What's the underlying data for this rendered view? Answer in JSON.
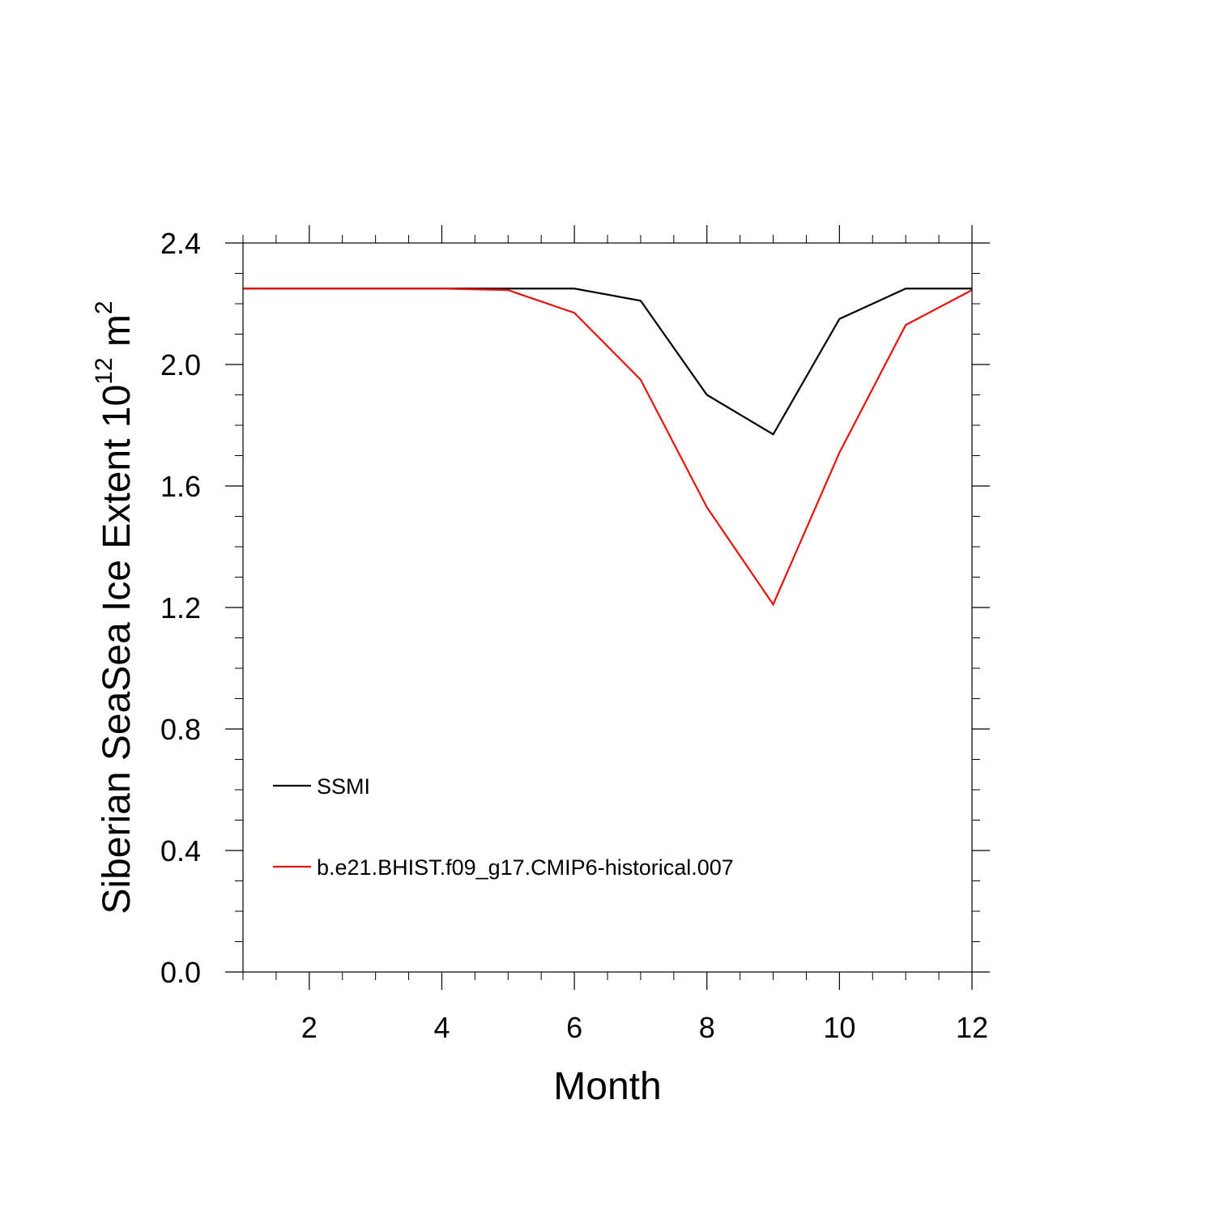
{
  "chart_data": {
    "type": "line",
    "xlabel": "Month",
    "ylabel": {
      "prefix": "Siberian SeaSea Ice Extent 10",
      "exponent": "12",
      "unit": " m",
      "unit_exponent": "2"
    },
    "xlim": [
      1,
      12
    ],
    "ylim": [
      0.0,
      2.4
    ],
    "x_major_ticks": [
      2,
      4,
      6,
      8,
      10,
      12
    ],
    "x_tick_labels": [
      "2",
      "4",
      "6",
      "8",
      "10",
      "12"
    ],
    "x_minor_step": 0.5,
    "y_major_ticks": [
      0.0,
      0.4,
      0.8,
      1.2,
      1.6,
      2.0,
      2.4
    ],
    "y_tick_labels": [
      "0.0",
      "0.4",
      "0.8",
      "1.2",
      "1.6",
      "2.0",
      "2.4"
    ],
    "y_minor_step": 0.1,
    "grid": false,
    "legend_placement": "lower-left inside",
    "x": [
      1,
      2,
      3,
      4,
      5,
      6,
      7,
      8,
      9,
      10,
      11,
      12
    ],
    "series": [
      {
        "name": "SSMI",
        "color": "#000000",
        "values": [
          2.25,
          2.25,
          2.25,
          2.25,
          2.25,
          2.25,
          2.21,
          1.9,
          1.77,
          2.15,
          2.25,
          2.25
        ]
      },
      {
        "name": "b.e21.BHIST.f09_g17.CMIP6-historical.007",
        "color": "#e8120c",
        "values": [
          2.25,
          2.25,
          2.25,
          2.25,
          2.245,
          2.17,
          1.95,
          1.53,
          1.21,
          1.71,
          2.13,
          2.245
        ]
      }
    ]
  }
}
